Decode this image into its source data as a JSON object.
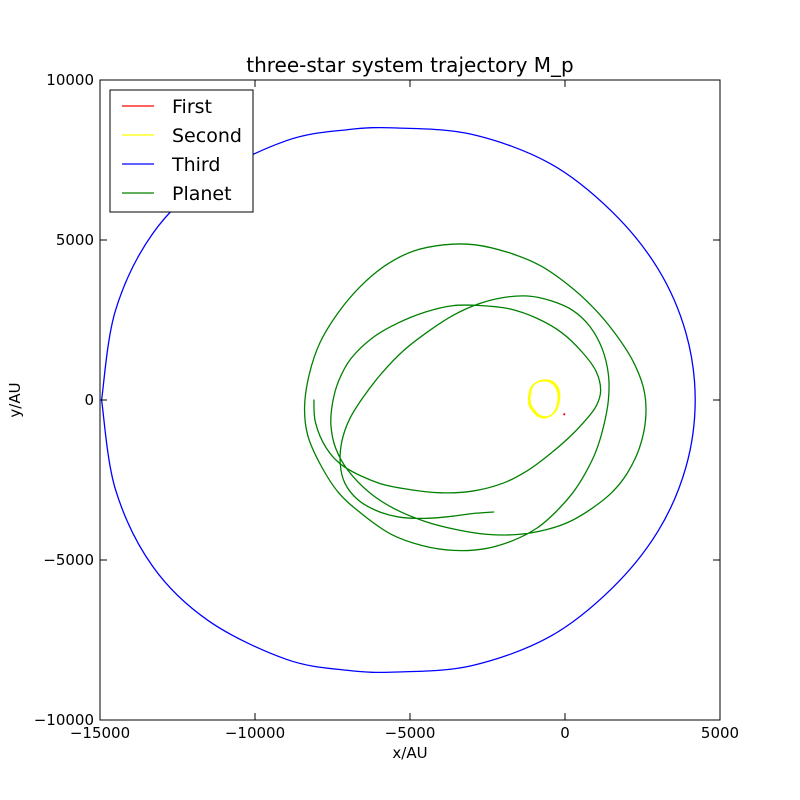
{
  "chart_data": {
    "type": "line",
    "title": "three-star system trajectory M_p",
    "xlabel": "x/AU",
    "ylabel": "y/AU",
    "xlim": [
      -15000,
      5000
    ],
    "ylim": [
      -10000,
      10000
    ],
    "xticks": [
      -15000,
      -10000,
      -5000,
      0,
      5000
    ],
    "yticks": [
      -10000,
      -5000,
      0,
      5000,
      10000
    ],
    "xtick_labels": [
      "−15000",
      "−10000",
      "−5000",
      "0",
      "5000"
    ],
    "ytick_labels": [
      "−10000",
      "−5000",
      "0",
      "5000",
      "10000"
    ],
    "grid": false,
    "legend_position": "top-left",
    "series": [
      {
        "name": "First",
        "color": "#ff0000",
        "x": [
          -40,
          -25,
          -10,
          -20,
          -35,
          -40
        ],
        "y": [
          -450,
          -430,
          -440,
          -460,
          -455,
          -450
        ]
      },
      {
        "name": "Second",
        "color": "#ffff00",
        "x": [
          -1180,
          -1150,
          -1050,
          -880,
          -680,
          -480,
          -320,
          -230,
          -230,
          -320,
          -480,
          -680,
          -880,
          -1050,
          -1150,
          -1180
        ],
        "y": [
          0,
          250,
          450,
          560,
          600,
          560,
          430,
          220,
          -50,
          -330,
          -500,
          -560,
          -500,
          -330,
          -180,
          0
        ],
        "loops": 3
      },
      {
        "name": "Third",
        "color": "#0000ff",
        "x": [
          -14950,
          -14500,
          -13300,
          -11500,
          -9000,
          -7000,
          -5400,
          -3000,
          -500,
          1500,
          3000,
          3900,
          4200,
          3900,
          3000,
          1500,
          -500,
          -3000,
          -5400,
          -7000,
          -9000,
          -11500,
          -13300,
          -14500,
          -14950
        ],
        "y": [
          0,
          2800,
          5200,
          6900,
          8100,
          8450,
          8500,
          8300,
          7400,
          5900,
          4100,
          2100,
          0,
          -2100,
          -4100,
          -5900,
          -7400,
          -8300,
          -8500,
          -8450,
          -8100,
          -6900,
          -5200,
          -2800,
          0
        ]
      },
      {
        "name": "Planet",
        "color": "#008000",
        "x": [
          -8100,
          -8050,
          -7700,
          -7100,
          -6000,
          -5000,
          -4000,
          -3000,
          -2000,
          -1200,
          -500,
          100,
          600,
          1000,
          1150,
          1000,
          550,
          -100,
          -900,
          -1800,
          -2700,
          -3600,
          -4500,
          -5400,
          -6200,
          -6900,
          -7300,
          -7500,
          -7550,
          -7400,
          -7000,
          -6300,
          -5500,
          -4500,
          -3500,
          -2500,
          -1500,
          -600,
          150,
          850,
          1500,
          2000,
          2400,
          2600,
          2550,
          2200,
          1600,
          900,
          100,
          -800,
          -1800,
          -2900,
          -3900,
          -4900,
          -5800,
          -6600,
          -7300,
          -7900,
          -8250,
          -8400,
          -8300,
          -7900,
          -7300,
          -6500,
          -5600,
          -4600,
          -3600,
          -2600,
          -1700,
          -900,
          -300,
          250,
          650,
          1000,
          1250,
          1400,
          1400,
          1200,
          800,
          250,
          -450,
          -1200,
          -2000,
          -2800,
          -3600,
          -4400,
          -5200,
          -5900,
          -6500,
          -6950,
          -7200,
          -7250,
          -7100,
          -6700,
          -6100,
          -5400,
          -4600,
          -3800,
          -3000,
          -2300
        ],
        "y": [
          0,
          -700,
          -1500,
          -2100,
          -2600,
          -2800,
          -2900,
          -2850,
          -2600,
          -2200,
          -1700,
          -1200,
          -700,
          -200,
          300,
          900,
          1500,
          2100,
          2550,
          2850,
          2950,
          2950,
          2750,
          2400,
          1950,
          1300,
          600,
          -100,
          -800,
          -1500,
          -2200,
          -2900,
          -3400,
          -3800,
          -4050,
          -4200,
          -4200,
          -4050,
          -3800,
          -3400,
          -2900,
          -2300,
          -1500,
          -600,
          300,
          1200,
          2100,
          2900,
          3600,
          4200,
          4600,
          4850,
          4850,
          4650,
          4200,
          3550,
          2750,
          1800,
          800,
          -200,
          -1100,
          -2000,
          -2900,
          -3600,
          -4200,
          -4550,
          -4700,
          -4650,
          -4400,
          -4000,
          -3500,
          -2900,
          -2300,
          -1600,
          -800,
          0,
          800,
          1600,
          2300,
          2800,
          3100,
          3250,
          3200,
          3000,
          2650,
          2150,
          1550,
          850,
          100,
          -600,
          -1300,
          -2000,
          -2600,
          -3100,
          -3450,
          -3650,
          -3700,
          -3650,
          -3550,
          -3500
        ]
      }
    ]
  }
}
